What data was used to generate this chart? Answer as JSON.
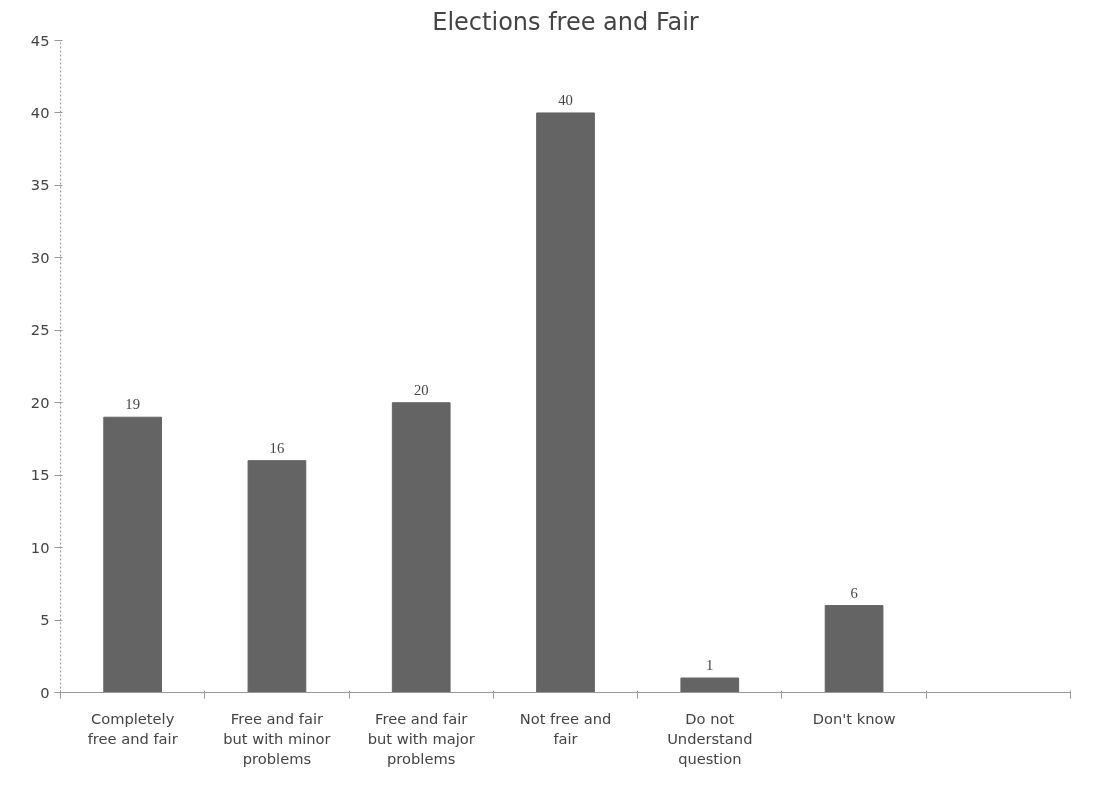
{
  "chart_data": {
    "type": "bar",
    "title": "Elections free and Fair",
    "categories": [
      "Completely free and fair",
      "Free and fair but with minor problems",
      "Free and fair but with major problems",
      "Not free and fair",
      "Do not Understand question",
      "Don't know",
      null
    ],
    "values": [
      19,
      16,
      20,
      40,
      1,
      6,
      null
    ],
    "color": "#646464",
    "ylim": [
      0,
      45
    ],
    "yticks": [
      0,
      5,
      10,
      15,
      20,
      25,
      30,
      35,
      40,
      45
    ],
    "data_labels": true,
    "grid": false
  }
}
